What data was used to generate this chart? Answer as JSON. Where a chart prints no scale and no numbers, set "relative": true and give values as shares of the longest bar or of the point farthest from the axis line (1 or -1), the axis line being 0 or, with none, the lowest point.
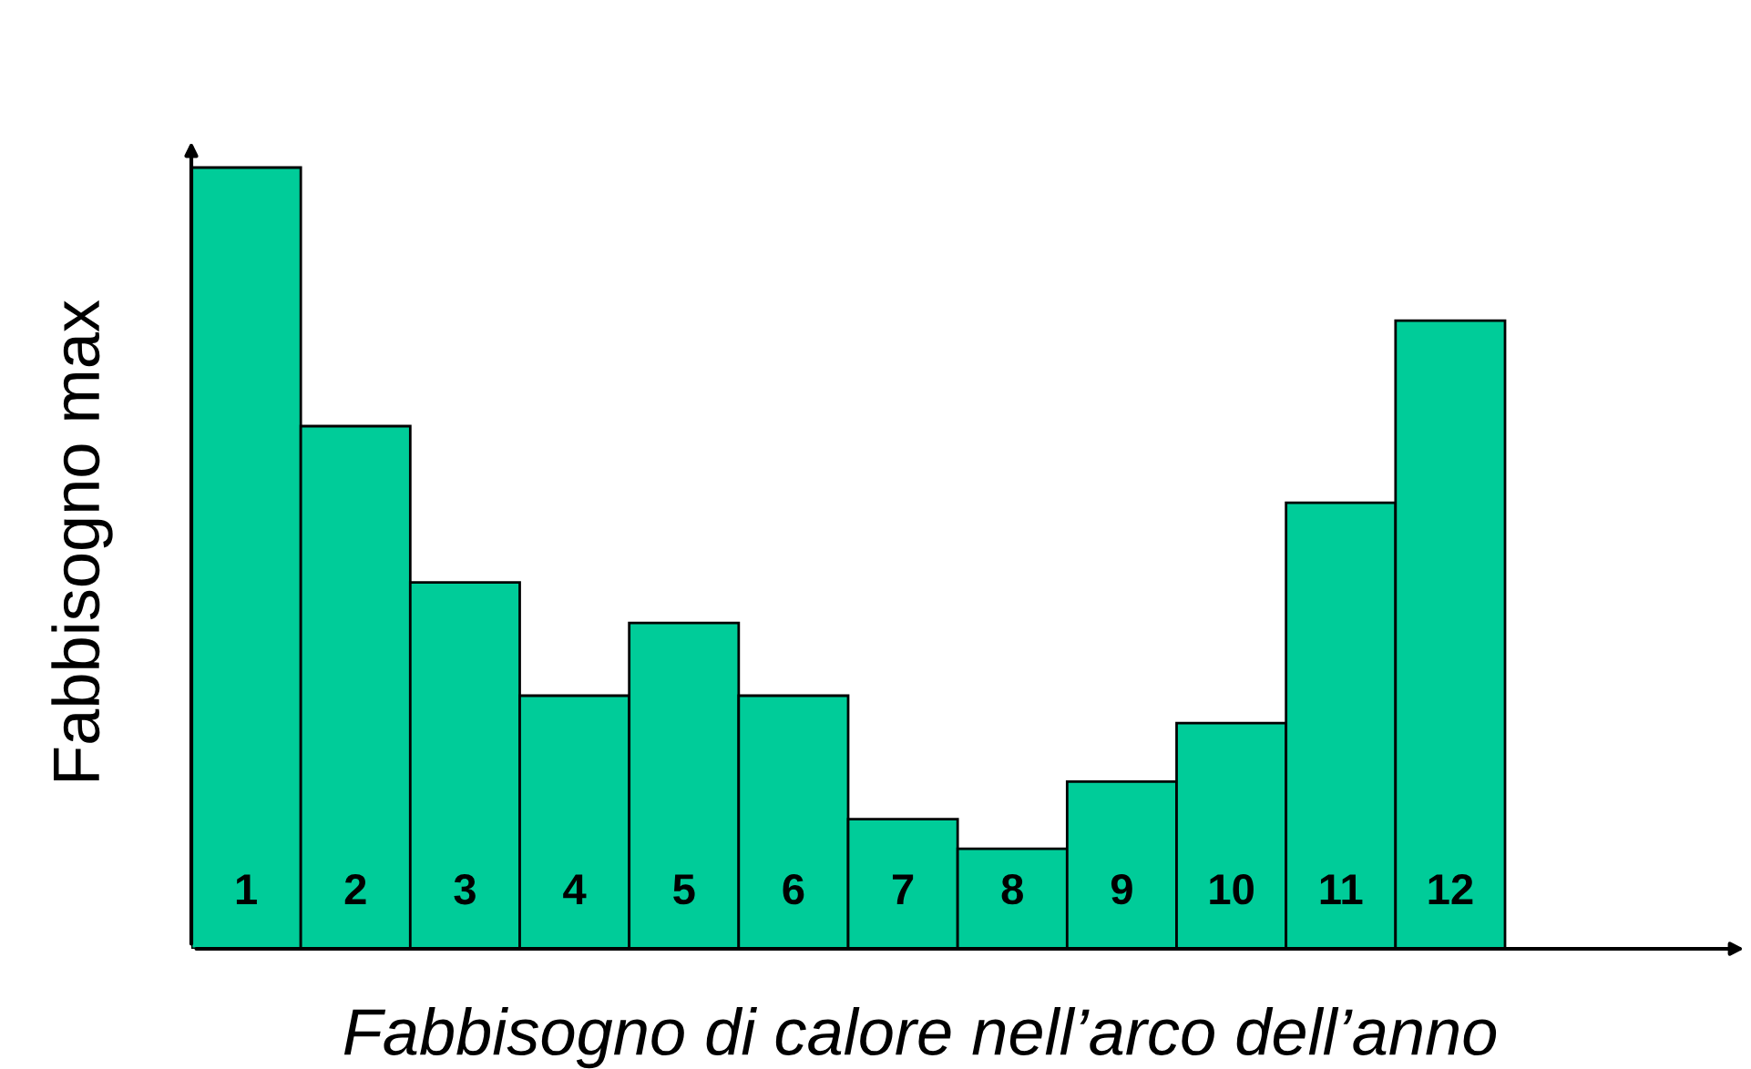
{
  "chart_data": {
    "type": "bar",
    "relative": true,
    "xlabel": "Fabbisogno di calore nell’arco dell’anno",
    "ylabel": "Fabbisogno max",
    "categories": [
      "1",
      "2",
      "3",
      "4",
      "5",
      "6",
      "7",
      "8",
      "9",
      "10",
      "11",
      "12"
    ],
    "values": [
      1,
      0.669,
      0.469,
      0.324,
      0.417,
      0.324,
      0.166,
      0.128,
      0.214,
      0.289,
      0.571,
      0.804
    ],
    "color": "#00cc99",
    "grid": false,
    "legend": false
  }
}
